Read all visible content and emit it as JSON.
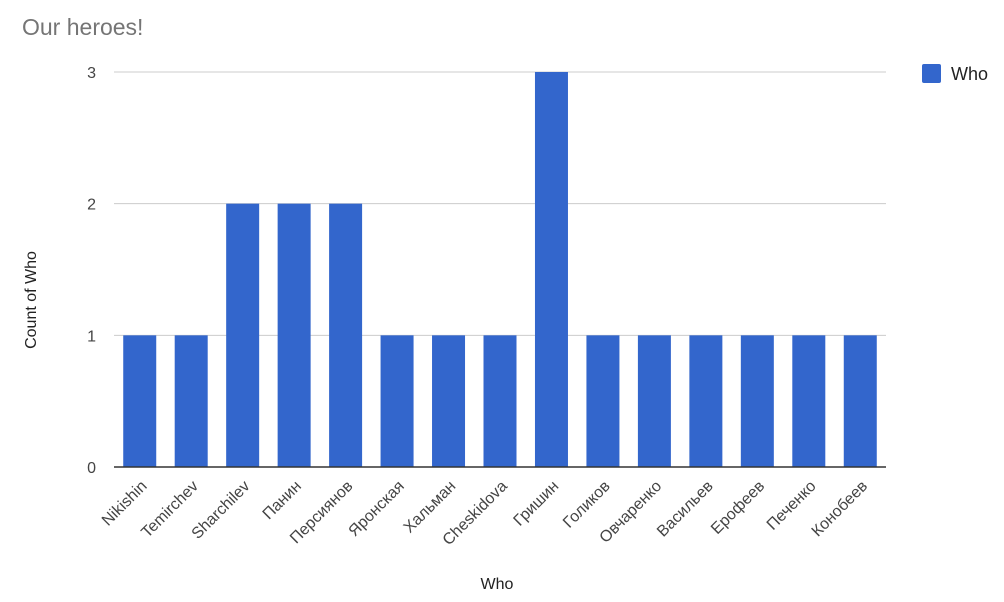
{
  "chart_data": {
    "type": "bar",
    "title": "Our heroes!",
    "xlabel": "Who",
    "ylabel": "Count of Who",
    "categories": [
      "Nikishin",
      "Temirchev",
      "Sharchilev",
      "Панин",
      "Персиянов",
      "Яронская",
      "Хальман",
      "Cheskidova",
      "Гришин",
      "Голиков",
      "Овчаренко",
      "Васильев",
      "Ерофеев",
      "Печенко",
      "Конобеев"
    ],
    "series": [
      {
        "name": "Who",
        "values": [
          1,
          1,
          2,
          2,
          2,
          1,
          1,
          1,
          3,
          1,
          1,
          1,
          1,
          1,
          1
        ]
      }
    ],
    "ylim": [
      0,
      3
    ],
    "yticks": [
      "0",
      "1",
      "2",
      "3"
    ],
    "grid": true,
    "legend": "right",
    "bar_color": "#3366cc",
    "grid_color": "#cccccc",
    "axis_color": "#333333"
  }
}
